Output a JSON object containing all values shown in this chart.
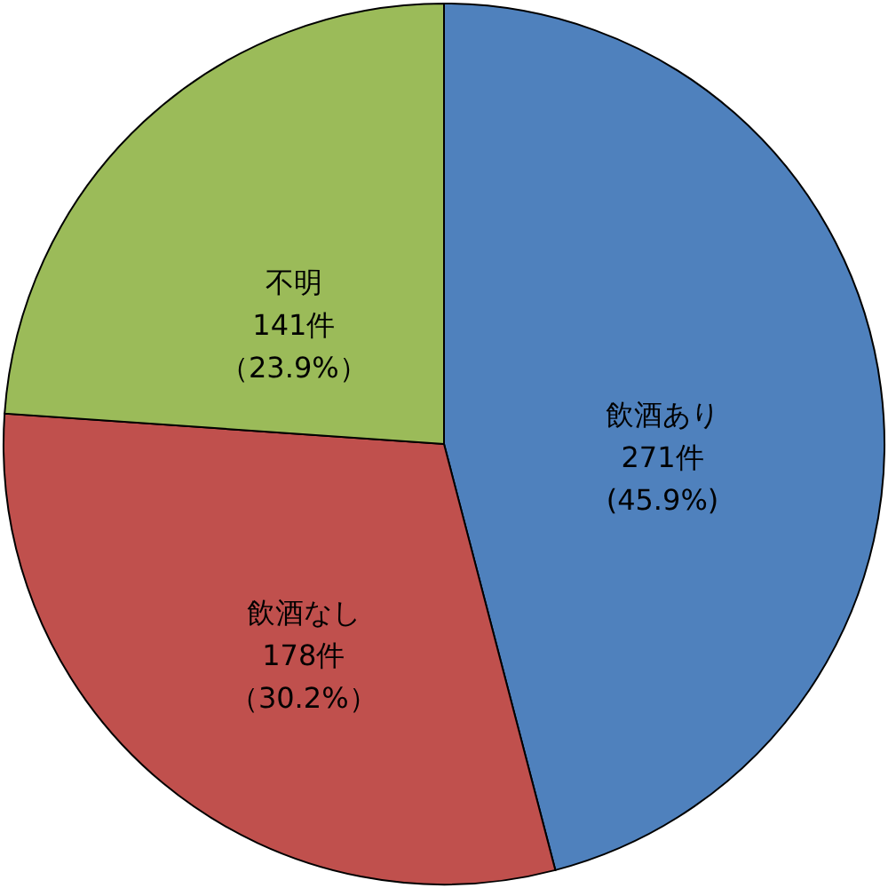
{
  "chart_data": {
    "type": "pie",
    "categories": [
      "飲酒あり",
      "飲酒なし",
      "不明"
    ],
    "values": [
      271,
      178,
      141
    ],
    "colors": [
      "#4f81bd",
      "#c0504d",
      "#9bbb59"
    ],
    "value_labels": [
      "271件(45.9%)",
      "178件（30.2%）",
      "141件（23.9%）"
    ]
  }
}
